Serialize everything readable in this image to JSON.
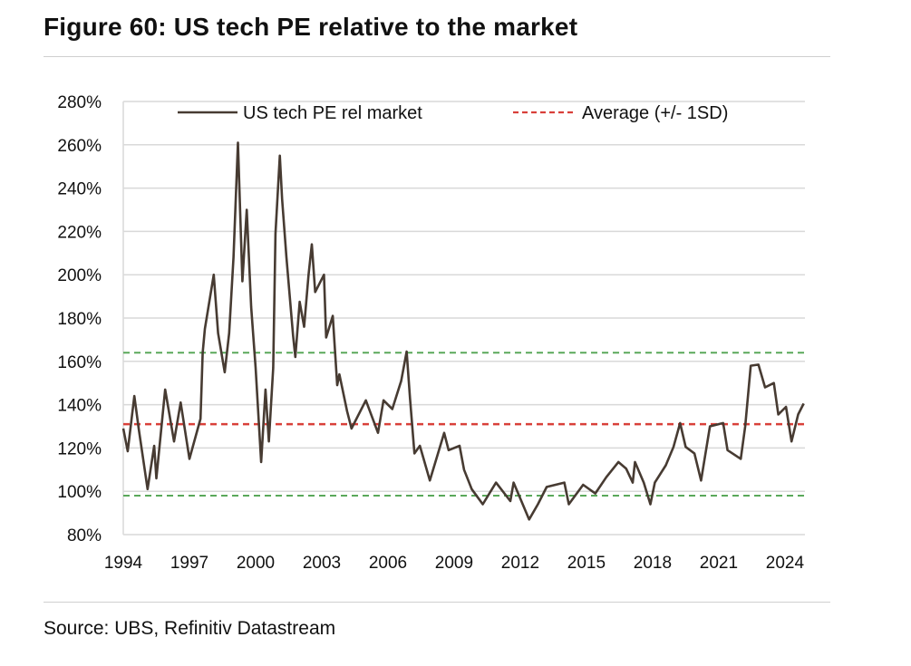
{
  "title": "Figure 60: US tech PE relative to the market",
  "source": "Source: UBS, Refinitiv Datastream",
  "chart_data": {
    "type": "line",
    "title": "Figure 60: US tech PE relative to the market",
    "xlabel": "",
    "ylabel": "",
    "xlim": [
      1994,
      2024
    ],
    "ylim": [
      80,
      280
    ],
    "grid": true,
    "legend_position": "top",
    "x_ticks": [
      "1994",
      "1997",
      "2000",
      "2003",
      "2006",
      "2009",
      "2012",
      "2015",
      "2018",
      "2021",
      "2024"
    ],
    "x_tick_values": [
      1994,
      1997,
      2000,
      2003,
      2006,
      2009,
      2012,
      2015,
      2018,
      2021,
      2024
    ],
    "y_ticks": [
      "80%",
      "100%",
      "120%",
      "140%",
      "160%",
      "180%",
      "200%",
      "220%",
      "240%",
      "260%",
      "280%"
    ],
    "y_tick_values": [
      80,
      100,
      120,
      140,
      160,
      180,
      200,
      220,
      240,
      260,
      280
    ],
    "series": [
      {
        "name": "US tech PE rel market",
        "color": "#473b32",
        "x": [
          1994.0,
          1994.2,
          1994.5,
          1994.7,
          1995.1,
          1995.4,
          1995.5,
          1995.9,
          1996.3,
          1996.6,
          1997.0,
          1997.5,
          1997.6,
          1997.7,
          1998.1,
          1998.3,
          1998.6,
          1998.8,
          1999.0,
          1999.2,
          1999.4,
          1999.6,
          1999.8,
          2000.0,
          2000.25,
          2000.45,
          2000.6,
          2000.8,
          2000.9,
          2001.1,
          2001.2,
          2001.4,
          2001.7,
          2001.8,
          2002.0,
          2002.2,
          2002.4,
          2002.55,
          2002.7,
          2003.1,
          2003.2,
          2003.5,
          2003.7,
          2003.8,
          2004.15,
          2004.35,
          2005.0,
          2005.55,
          2005.8,
          2006.2,
          2006.6,
          2006.85,
          2007.0,
          2007.2,
          2007.45,
          2007.9,
          2008.55,
          2008.75,
          2009.25,
          2009.45,
          2009.8,
          2010.3,
          2010.9,
          2011.55,
          2011.7,
          2012.4,
          2012.8,
          2013.2,
          2014.0,
          2014.2,
          2014.85,
          2015.4,
          2015.9,
          2016.45,
          2016.8,
          2017.1,
          2017.2,
          2017.6,
          2017.9,
          2018.1,
          2018.6,
          2018.95,
          2019.25,
          2019.5,
          2019.9,
          2020.2,
          2020.6,
          2021.2,
          2021.4,
          2022.0,
          2022.2,
          2022.45,
          2022.8,
          2023.1,
          2023.5,
          2023.7,
          2024.05,
          2024.3,
          2024.6,
          2024.85
        ],
        "values": [
          129,
          118.5,
          144,
          129,
          101,
          121,
          106,
          147,
          123,
          141,
          115,
          133.5,
          164,
          175,
          200,
          173,
          155,
          173,
          208,
          261,
          197,
          230,
          185,
          157,
          113.5,
          147,
          123,
          157,
          219,
          255,
          235,
          208,
          172,
          162,
          187.5,
          176,
          200,
          214,
          192,
          200,
          171,
          181,
          149,
          154,
          137,
          129,
          142,
          127,
          142,
          138,
          151,
          164.5,
          143,
          117.5,
          121,
          105,
          127,
          119,
          121,
          110,
          101,
          94,
          104,
          95.5,
          104,
          87,
          94,
          102,
          104,
          94,
          103,
          99,
          106.5,
          113.5,
          110.5,
          104,
          113.5,
          104,
          94,
          104,
          112,
          120.5,
          131.5,
          120.5,
          117.5,
          105,
          130,
          131.5,
          119,
          115,
          130,
          158,
          158.5,
          148,
          150,
          135.5,
          139,
          123,
          135.5,
          140.5
        ]
      },
      {
        "name": "Average (+/- 1SD)",
        "color": "#d9403a",
        "average": 131,
        "upper_1sd": 164,
        "lower_1sd": 98,
        "band_color": "#5aa85a"
      }
    ]
  }
}
